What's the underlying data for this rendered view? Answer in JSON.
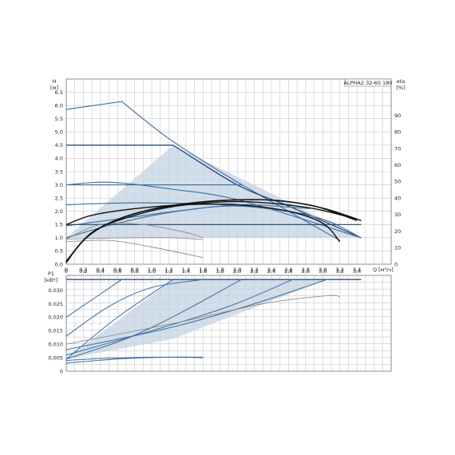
{
  "chart_data": [
    {
      "type": "line",
      "title": "ALPHA2 32-60 180",
      "xlabel": "Q [м³/ч]",
      "ylabel": "H\n[м]",
      "ylabel_right": "eta\n[%]",
      "x_ticks": [
        "0",
        "0,2",
        "0,4",
        "0,6",
        "0,8",
        "1,0",
        "1,2",
        "1,4",
        "1,6",
        "1,8",
        "2,0",
        "2,2",
        "2,4",
        "2,6",
        "2,8",
        "3,0",
        "3,2",
        "3,4"
      ],
      "y_ticks": [
        "0.0",
        "0.5",
        "1.0",
        "1.5",
        "2.0",
        "2.5",
        "3.0",
        "3.5",
        "4.0",
        "4.5",
        "5.0",
        "5.5",
        "6.0",
        "6.5"
      ],
      "y_right_ticks": [
        "0",
        "10",
        "20",
        "30",
        "40",
        "50",
        "60",
        "70",
        "80",
        "90"
      ],
      "xlim": [
        0,
        3.8
      ],
      "ylim": [
        0,
        7.0
      ],
      "y_right_lim": [
        0,
        112
      ],
      "grid": true,
      "shaded_area": [
        [
          0,
          1.0
        ],
        [
          1.25,
          4.5
        ],
        [
          3.45,
          1.0
        ]
      ],
      "shaded_area_lower": [
        [
          3.45,
          1.0
        ],
        [
          2.85,
          1.75
        ],
        [
          0,
          1.0
        ]
      ],
      "series": [
        {
          "x": [
            0,
            0.65
          ],
          "y": [
            5.85,
            6.15
          ]
        },
        {
          "x": [
            0.65,
            1.2,
            1.9,
            2.6,
            3.2
          ],
          "y": [
            6.15,
            4.75,
            3.3,
            2.0,
            0.9
          ]
        },
        {
          "x": [
            0,
            1.25
          ],
          "y": [
            4.5,
            4.5
          ]
        },
        {
          "x": [
            1.25,
            2.0,
            2.6,
            3.45
          ],
          "y": [
            4.5,
            3.0,
            2.2,
            1.0
          ]
        },
        {
          "x": [
            0,
            2.05
          ],
          "y": [
            3.0,
            3.0
          ]
        },
        {
          "x": [
            0,
            0.5,
            1.2,
            2.05,
            3.45
          ],
          "y": [
            3.0,
            3.1,
            2.85,
            2.4,
            1.0
          ]
        },
        {
          "x": [
            0,
            0.8,
            1.6,
            2.3,
            3.0,
            3.45
          ],
          "y": [
            2.25,
            2.32,
            2.28,
            2.15,
            1.7,
            1.0
          ]
        },
        {
          "x": [
            0,
            0.6,
            1.3,
            2.0,
            2.8
          ],
          "y": [
            1.0,
            1.55,
            2.0,
            2.2,
            1.9
          ]
        },
        {
          "x": [
            0,
            0.7,
            1.4,
            2.1,
            2.85
          ],
          "y": [
            1.45,
            1.75,
            2.05,
            2.25,
            2.1
          ]
        },
        {
          "x": [
            0,
            3.45
          ],
          "y": [
            1.5,
            1.5
          ]
        },
        {
          "x": [
            0,
            0.7,
            1.25,
            1.6
          ],
          "y": [
            0.95,
            1.0,
            1.0,
            0.93
          ]
        },
        {
          "x": [
            0,
            0.4,
            0.9,
            1.4,
            1.6
          ],
          "y": [
            0.95,
            1.5,
            1.5,
            1.2,
            1.0
          ]
        },
        {
          "x": [
            0,
            0.5,
            1.0,
            1.6
          ],
          "y": [
            0.85,
            0.9,
            0.65,
            0.25
          ]
        },
        {
          "x": [
            0,
            0.3,
            0.8,
            1.4,
            2.0,
            2.6,
            3.0,
            3.2
          ],
          "y": [
            1.5,
            1.85,
            2.1,
            2.25,
            2.25,
            2.0,
            1.55,
            0.85
          ]
        },
        {
          "x": [
            0,
            0.2,
            0.5,
            0.9,
            1.4,
            1.9,
            2.4,
            2.9,
            3.4
          ],
          "y": [
            0.05,
            0.9,
            1.55,
            2.0,
            2.28,
            2.42,
            2.42,
            2.2,
            1.65
          ]
        },
        {
          "x": [
            0,
            0.25,
            0.55,
            1.0,
            1.5,
            2.0,
            2.5,
            3.0,
            3.45
          ],
          "y": [
            0.1,
            1.05,
            1.62,
            2.08,
            2.33,
            2.43,
            2.4,
            2.12,
            1.65
          ]
        },
        {
          "x": [
            0,
            0.3,
            0.7,
            1.2,
            1.8,
            2.3,
            2.9,
            3.4
          ],
          "y": [
            0.12,
            1.2,
            1.75,
            2.15,
            2.35,
            2.33,
            2.1,
            1.7
          ]
        }
      ]
    },
    {
      "type": "line",
      "title": "",
      "xlabel": "",
      "ylabel": "P1\n[кВт]",
      "x_ticks": [
        "0",
        "0,2",
        "0,4",
        "0,6",
        "0,8",
        "1,0",
        "1,2",
        "1,4",
        "1,6",
        "1,8",
        "2,0",
        "2,2",
        "2,4",
        "2,6",
        "2,8",
        "3,0",
        "3,2",
        "3,4"
      ],
      "y_ticks": [
        "0",
        "0,005",
        "0,010",
        "0,015",
        "0,020",
        "0,025",
        "0,030"
      ],
      "xlim": [
        0,
        3.8
      ],
      "ylim": [
        0,
        0.0355
      ],
      "grid": true,
      "shaded_area": [
        [
          0,
          0.0045
        ],
        [
          1.25,
          0.034
        ],
        [
          3.05,
          0.034
        ],
        [
          1.25,
          0.012
        ]
      ],
      "series": [
        {
          "x": [
            0,
            3.45
          ],
          "y": [
            0.034,
            0.034
          ]
        },
        {
          "x": [
            0,
            0.65
          ],
          "y": [
            0.02,
            0.034
          ]
        },
        {
          "x": [
            0,
            0.6,
            1.25
          ],
          "y": [
            0.0045,
            0.02,
            0.034
          ]
        },
        {
          "x": [
            0,
            0.7,
            1.3,
            2.05
          ],
          "y": [
            0.0045,
            0.012,
            0.021,
            0.034
          ]
        },
        {
          "x": [
            0,
            1.0,
            1.9,
            2.65
          ],
          "y": [
            0.006,
            0.015,
            0.024,
            0.034
          ]
        },
        {
          "x": [
            0,
            1.2,
            2.2,
            3.05
          ],
          "y": [
            0.008,
            0.016,
            0.025,
            0.034
          ]
        },
        {
          "x": [
            0,
            1.3,
            2.3,
            3.05,
            3.2
          ],
          "y": [
            0.01,
            0.018,
            0.025,
            0.028,
            0.0275
          ]
        },
        {
          "x": [
            0,
            0.5,
            1.0,
            1.6
          ],
          "y": [
            0.013,
            0.024,
            0.031,
            0.034
          ]
        },
        {
          "x": [
            0,
            0.5,
            1.1,
            1.6
          ],
          "y": [
            0.004,
            0.0048,
            0.0052,
            0.005
          ]
        },
        {
          "x": [
            0,
            0.6,
            1.2,
            1.6
          ],
          "y": [
            0.003,
            0.0045,
            0.0052,
            0.0052
          ]
        }
      ]
    }
  ],
  "colors": {
    "curve": "#3a6ea0",
    "curve_dark": "#1f3f66",
    "grey_curve": "#8c8c8c",
    "black_curve": "#111111",
    "shade": "#c3d3e3",
    "grid": "#c8c8c8"
  }
}
